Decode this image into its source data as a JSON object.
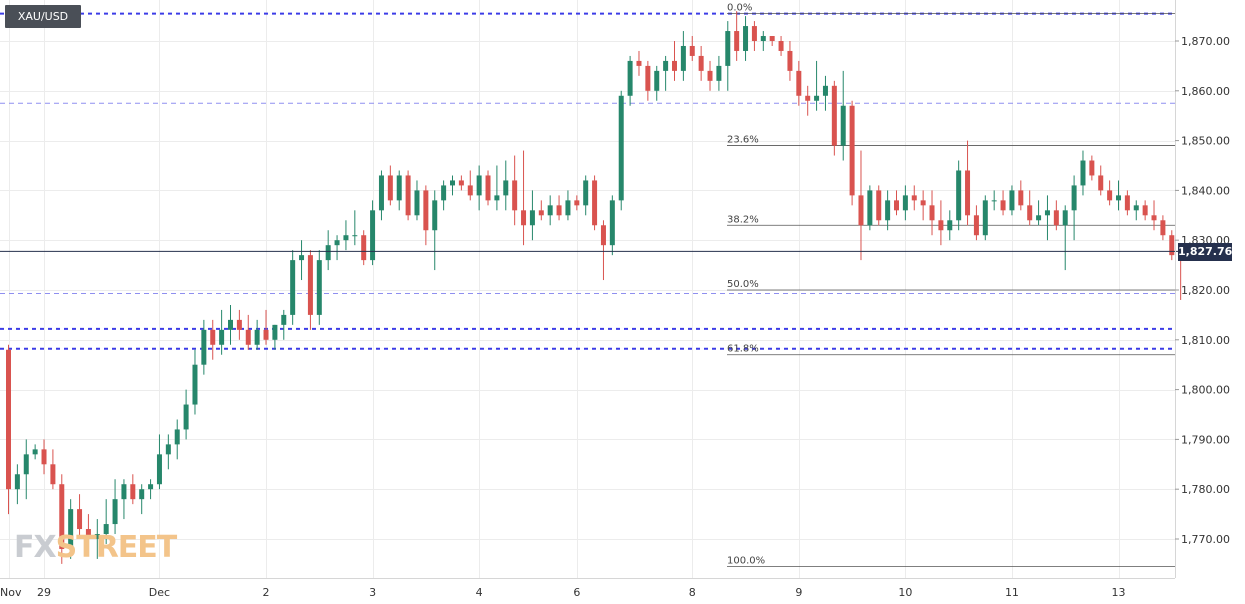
{
  "symbol": "XAU/USD",
  "last_price": "1,827.76",
  "watermark": {
    "part1": "FX",
    "part2": "STREET"
  },
  "colors": {
    "up": "#26876b",
    "down": "#d9534f",
    "grid": "#ececec",
    "dotted_line": "#3c3ce6",
    "dashed_line": "#8f8ff0",
    "fib_line": "#555555",
    "price_line": "#25304d"
  },
  "chart_data": {
    "type": "candlestick",
    "title": "XAU/USD",
    "ylim": [
      1762,
      1878
    ],
    "y_ticks": [
      "1,770.00",
      "1,780.00",
      "1,790.00",
      "1,800.00",
      "1,810.00",
      "1,820.00",
      "1,830.00",
      "1,840.00",
      "1,850.00",
      "1,860.00",
      "1,870.00"
    ],
    "y_tick_values": [
      1770,
      1780,
      1790,
      1800,
      1810,
      1820,
      1830,
      1840,
      1850,
      1860,
      1870
    ],
    "x_ticks": [
      {
        "label": "Nov",
        "index": 0
      },
      {
        "label": "29",
        "index": 4
      },
      {
        "label": "Dec",
        "index": 17
      },
      {
        "label": "2",
        "index": 29
      },
      {
        "label": "3",
        "index": 41
      },
      {
        "label": "4",
        "index": 53
      },
      {
        "label": "6",
        "index": 64
      },
      {
        "label": "8",
        "index": 77
      },
      {
        "label": "9",
        "index": 89
      },
      {
        "label": "10",
        "index": 101
      },
      {
        "label": "11",
        "index": 113
      },
      {
        "label": "13",
        "index": 125
      }
    ],
    "fibonacci": [
      {
        "label": "0.0%",
        "value": 1875.5
      },
      {
        "label": "23.6%",
        "value": 1849
      },
      {
        "label": "38.2%",
        "value": 1833
      },
      {
        "label": "50.0%",
        "value": 1820
      },
      {
        "label": "61.8%",
        "value": 1807
      },
      {
        "label": "100.0%",
        "value": 1764.5
      }
    ],
    "horizontal_lines": [
      {
        "value": 1875.5,
        "style": "dotted"
      },
      {
        "value": 1857.5,
        "style": "dashed"
      },
      {
        "value": 1819.3,
        "style": "dashed"
      },
      {
        "value": 1812.2,
        "style": "dotted"
      },
      {
        "value": 1808.2,
        "style": "dotted"
      }
    ],
    "current_price": 1827.76,
    "ohlc": [
      [
        1808,
        1809,
        1775,
        1780
      ],
      [
        1780,
        1785,
        1777,
        1783
      ],
      [
        1783,
        1790,
        1778,
        1787
      ],
      [
        1787,
        1789,
        1786,
        1788
      ],
      [
        1788,
        1790,
        1783,
        1785
      ],
      [
        1785,
        1788,
        1780,
        1781
      ],
      [
        1781,
        1783,
        1765,
        1768
      ],
      [
        1768,
        1778,
        1766,
        1776
      ],
      [
        1776,
        1779,
        1770,
        1772
      ],
      [
        1772,
        1775,
        1768,
        1770
      ],
      [
        1770,
        1774,
        1766,
        1771
      ],
      [
        1771,
        1778,
        1769,
        1773
      ],
      [
        1773,
        1782,
        1771,
        1778
      ],
      [
        1778,
        1782,
        1774,
        1781
      ],
      [
        1781,
        1783,
        1777,
        1778
      ],
      [
        1778,
        1781,
        1775,
        1780
      ],
      [
        1780,
        1782,
        1778,
        1781
      ],
      [
        1781,
        1791,
        1780,
        1787
      ],
      [
        1787,
        1791,
        1784,
        1789
      ],
      [
        1789,
        1794,
        1786,
        1792
      ],
      [
        1792,
        1800,
        1790,
        1797
      ],
      [
        1797,
        1808,
        1795,
        1805
      ],
      [
        1805,
        1814,
        1803,
        1812
      ],
      [
        1812,
        1814,
        1806,
        1809
      ],
      [
        1809,
        1816,
        1807,
        1812
      ],
      [
        1812,
        1817,
        1809,
        1814
      ],
      [
        1814,
        1816,
        1810,
        1812
      ],
      [
        1812,
        1815,
        1808,
        1809
      ],
      [
        1809,
        1814,
        1808,
        1812
      ],
      [
        1812,
        1816,
        1809,
        1810
      ],
      [
        1810,
        1813,
        1808,
        1813
      ],
      [
        1813,
        1816,
        1810,
        1815
      ],
      [
        1815,
        1828,
        1813,
        1826
      ],
      [
        1826,
        1830,
        1822,
        1827
      ],
      [
        1827,
        1828,
        1812,
        1815
      ],
      [
        1815,
        1828,
        1813,
        1826
      ],
      [
        1826,
        1832,
        1824,
        1829
      ],
      [
        1829,
        1831,
        1826,
        1830
      ],
      [
        1830,
        1834,
        1828,
        1831
      ],
      [
        1831,
        1836,
        1829,
        1831
      ],
      [
        1831,
        1832,
        1825,
        1826
      ],
      [
        1826,
        1838,
        1825,
        1836
      ],
      [
        1836,
        1844,
        1834,
        1843
      ],
      [
        1843,
        1845,
        1837,
        1838
      ],
      [
        1838,
        1844,
        1836,
        1843
      ],
      [
        1843,
        1844,
        1834,
        1835
      ],
      [
        1835,
        1842,
        1834,
        1840
      ],
      [
        1840,
        1841,
        1829,
        1832
      ],
      [
        1832,
        1840,
        1824,
        1838
      ],
      [
        1838,
        1842,
        1836,
        1841
      ],
      [
        1841,
        1843,
        1839,
        1842
      ],
      [
        1842,
        1843,
        1840,
        1841
      ],
      [
        1841,
        1844,
        1838,
        1839
      ],
      [
        1839,
        1845,
        1836,
        1843
      ],
      [
        1843,
        1844,
        1837,
        1838
      ],
      [
        1838,
        1845,
        1836,
        1839
      ],
      [
        1839,
        1846,
        1836,
        1842
      ],
      [
        1842,
        1847,
        1833,
        1836
      ],
      [
        1836,
        1848,
        1829,
        1833
      ],
      [
        1833,
        1840,
        1830,
        1836
      ],
      [
        1836,
        1838,
        1834,
        1835
      ],
      [
        1835,
        1839,
        1833,
        1837
      ],
      [
        1837,
        1839,
        1834,
        1835
      ],
      [
        1835,
        1840,
        1834,
        1838
      ],
      [
        1838,
        1839,
        1836,
        1837
      ],
      [
        1837,
        1843,
        1835,
        1842
      ],
      [
        1842,
        1843,
        1832,
        1833
      ],
      [
        1833,
        1834,
        1822,
        1829
      ],
      [
        1829,
        1839,
        1827,
        1838
      ],
      [
        1838,
        1860,
        1836,
        1859
      ],
      [
        1859,
        1867,
        1857,
        1866
      ],
      [
        1866,
        1868,
        1863,
        1865
      ],
      [
        1865,
        1866,
        1858,
        1860
      ],
      [
        1860,
        1865,
        1858,
        1864
      ],
      [
        1864,
        1867,
        1860,
        1866
      ],
      [
        1866,
        1870,
        1862,
        1864
      ],
      [
        1864,
        1872,
        1862,
        1869
      ],
      [
        1869,
        1871,
        1866,
        1867
      ],
      [
        1867,
        1869,
        1862,
        1864
      ],
      [
        1864,
        1866,
        1860,
        1862
      ],
      [
        1862,
        1867,
        1860,
        1865
      ],
      [
        1865,
        1874,
        1860,
        1872
      ],
      [
        1872,
        1876,
        1866,
        1868
      ],
      [
        1868,
        1875,
        1866,
        1873
      ],
      [
        1873,
        1874,
        1868,
        1870
      ],
      [
        1870,
        1872,
        1868,
        1871
      ],
      [
        1871,
        1871,
        1869,
        1870
      ],
      [
        1870,
        1871,
        1867,
        1868
      ],
      [
        1868,
        1870,
        1862,
        1864
      ],
      [
        1864,
        1866,
        1857,
        1859
      ],
      [
        1859,
        1861,
        1855,
        1858
      ],
      [
        1858,
        1866,
        1856,
        1859
      ],
      [
        1859,
        1863,
        1856,
        1861
      ],
      [
        1861,
        1862,
        1847,
        1849
      ],
      [
        1849,
        1864,
        1846,
        1857
      ],
      [
        1857,
        1858,
        1837,
        1839
      ],
      [
        1839,
        1848,
        1826,
        1833
      ],
      [
        1833,
        1841,
        1832,
        1840
      ],
      [
        1840,
        1841,
        1833,
        1834
      ],
      [
        1834,
        1840,
        1832,
        1838
      ],
      [
        1838,
        1840,
        1835,
        1836
      ],
      [
        1836,
        1841,
        1834,
        1839
      ],
      [
        1839,
        1841,
        1836,
        1838
      ],
      [
        1838,
        1840,
        1834,
        1837
      ],
      [
        1837,
        1840,
        1831,
        1834
      ],
      [
        1834,
        1838,
        1829,
        1832
      ],
      [
        1832,
        1836,
        1830,
        1834
      ],
      [
        1834,
        1846,
        1832,
        1844
      ],
      [
        1844,
        1850,
        1833,
        1835
      ],
      [
        1835,
        1837,
        1830,
        1831
      ],
      [
        1831,
        1839,
        1830,
        1838
      ],
      [
        1838,
        1840,
        1836,
        1838
      ],
      [
        1838,
        1840,
        1835,
        1836
      ],
      [
        1836,
        1841,
        1835,
        1840
      ],
      [
        1840,
        1842,
        1836,
        1837
      ],
      [
        1837,
        1840,
        1833,
        1834
      ],
      [
        1834,
        1838,
        1833,
        1835
      ],
      [
        1835,
        1839,
        1830,
        1836
      ],
      [
        1836,
        1838,
        1832,
        1833
      ],
      [
        1833,
        1837,
        1824,
        1836
      ],
      [
        1836,
        1843,
        1830,
        1841
      ],
      [
        1841,
        1848,
        1839,
        1846
      ],
      [
        1846,
        1847,
        1842,
        1843
      ],
      [
        1843,
        1845,
        1839,
        1840
      ],
      [
        1840,
        1842,
        1837,
        1838
      ],
      [
        1838,
        1842,
        1836,
        1839
      ],
      [
        1839,
        1840,
        1835,
        1836
      ],
      [
        1836,
        1838,
        1834,
        1837
      ],
      [
        1837,
        1838,
        1834,
        1835
      ],
      [
        1835,
        1838,
        1832,
        1834
      ],
      [
        1834,
        1835,
        1830,
        1831
      ],
      [
        1831,
        1832,
        1826,
        1827
      ],
      [
        1829,
        1829,
        1818,
        1827.76
      ]
    ]
  }
}
